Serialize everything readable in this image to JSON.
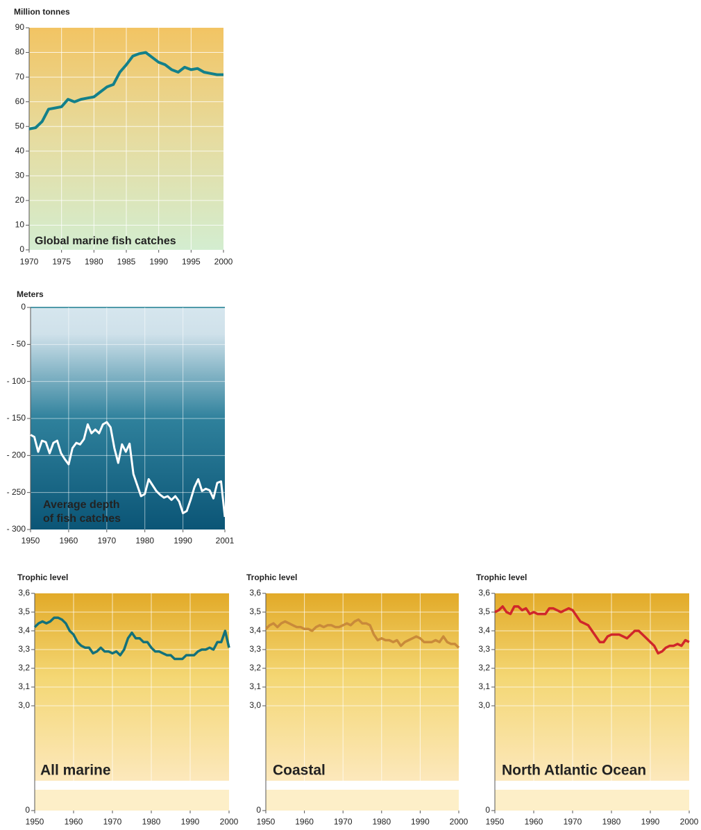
{
  "chart_data": [
    {
      "type": "line",
      "y_label": "Million tonnes",
      "title": "Global marine fish catches",
      "color": "#13808a",
      "x": [
        1970,
        1971,
        1972,
        1973,
        1974,
        1975,
        1976,
        1977,
        1978,
        1979,
        1980,
        1981,
        1982,
        1983,
        1984,
        1985,
        1986,
        1987,
        1988,
        1989,
        1990,
        1991,
        1992,
        1993,
        1994,
        1995,
        1996,
        1997,
        1998,
        1999,
        2000
      ],
      "values": [
        49,
        49.5,
        52,
        57,
        57.5,
        58,
        61,
        60,
        61,
        61.5,
        62,
        64,
        66,
        67,
        72,
        75,
        78.5,
        79.5,
        80,
        78,
        76,
        75,
        73,
        72,
        74,
        73,
        73.5,
        72,
        71.5,
        71,
        71
      ],
      "xlim": [
        1970,
        2000
      ],
      "xticks": [
        1970,
        1975,
        1980,
        1985,
        1990,
        1995,
        2000
      ],
      "ylim": [
        0,
        90
      ],
      "yticks": [
        0,
        10,
        20,
        30,
        40,
        50,
        60,
        70,
        80,
        90
      ],
      "grid": true
    },
    {
      "type": "line",
      "y_label": "Meters",
      "title": [
        "Average depth",
        "of fish catches"
      ],
      "color": "#ffffff",
      "x": [
        1950,
        1951,
        1952,
        1953,
        1954,
        1955,
        1956,
        1957,
        1958,
        1959,
        1960,
        1961,
        1962,
        1963,
        1964,
        1965,
        1966,
        1967,
        1968,
        1969,
        1970,
        1971,
        1972,
        1973,
        1974,
        1975,
        1976,
        1977,
        1978,
        1979,
        1980,
        1981,
        1982,
        1983,
        1984,
        1985,
        1986,
        1987,
        1988,
        1989,
        1990,
        1991,
        1992,
        1993,
        1994,
        1995,
        1996,
        1997,
        1998,
        1999,
        2000,
        2001
      ],
      "values": [
        -172,
        -175,
        -195,
        -180,
        -182,
        -197,
        -183,
        -180,
        -197,
        -205,
        -212,
        -190,
        -183,
        -185,
        -178,
        -158,
        -170,
        -165,
        -170,
        -158,
        -155,
        -162,
        -190,
        -210,
        -185,
        -195,
        -184,
        -225,
        -240,
        -255,
        -252,
        -232,
        -240,
        -248,
        -253,
        -257,
        -255,
        -260,
        -255,
        -262,
        -278,
        -275,
        -260,
        -243,
        -232,
        -248,
        -245,
        -247,
        -258,
        -237,
        -235,
        -283
      ],
      "xlim": [
        1950,
        2001
      ],
      "xticks": [
        1950,
        1960,
        1970,
        1980,
        1990,
        2001
      ],
      "ylim": [
        -300,
        0
      ],
      "yticks": [
        0,
        {
          "value": -50,
          "label": "- 50"
        },
        {
          "value": -100,
          "label": "- 100"
        },
        {
          "value": -150,
          "label": "- 150"
        },
        {
          "value": -200,
          "label": "- 200"
        },
        {
          "value": -250,
          "label": "- 250"
        },
        {
          "value": -300,
          "label": "- 300"
        }
      ],
      "grid": true
    },
    {
      "type": "line",
      "y_label": "Trophic level",
      "title": "All marine",
      "color": "#13717a",
      "x": [
        1950,
        1951,
        1952,
        1953,
        1954,
        1955,
        1956,
        1957,
        1958,
        1959,
        1960,
        1961,
        1962,
        1963,
        1964,
        1965,
        1966,
        1967,
        1968,
        1969,
        1970,
        1971,
        1972,
        1973,
        1974,
        1975,
        1976,
        1977,
        1978,
        1979,
        1980,
        1981,
        1982,
        1983,
        1984,
        1985,
        1986,
        1987,
        1988,
        1989,
        1990,
        1991,
        1992,
        1993,
        1994,
        1995,
        1996,
        1997,
        1998,
        1999,
        2000
      ],
      "values": [
        3.42,
        3.44,
        3.45,
        3.44,
        3.45,
        3.47,
        3.47,
        3.46,
        3.44,
        3.4,
        3.38,
        3.34,
        3.32,
        3.31,
        3.31,
        3.28,
        3.29,
        3.31,
        3.29,
        3.29,
        3.28,
        3.29,
        3.27,
        3.3,
        3.36,
        3.39,
        3.36,
        3.36,
        3.34,
        3.34,
        3.31,
        3.29,
        3.29,
        3.28,
        3.27,
        3.27,
        3.25,
        3.25,
        3.25,
        3.27,
        3.27,
        3.27,
        3.29,
        3.3,
        3.3,
        3.31,
        3.3,
        3.34,
        3.34,
        3.4,
        3.31
      ],
      "xlim": [
        1950,
        2000
      ],
      "xticks": [
        1950,
        1960,
        1970,
        1980,
        1990,
        2000
      ],
      "ylim": [
        2.6,
        3.6
      ],
      "yticks": [
        0,
        {
          "value": 3.0,
          "label": "3,0"
        },
        {
          "value": 3.1,
          "label": "3,1"
        },
        {
          "value": 3.2,
          "label": "3,2"
        },
        {
          "value": 3.3,
          "label": "3,3"
        },
        {
          "value": 3.4,
          "label": "3,4"
        },
        {
          "value": 3.5,
          "label": "3,5"
        },
        {
          "value": 3.6,
          "label": "3,6"
        }
      ],
      "grid": true
    },
    {
      "type": "line",
      "y_label": "Trophic level",
      "title": "Coastal",
      "color": "#c98a3a",
      "x": [
        1950,
        1951,
        1952,
        1953,
        1954,
        1955,
        1956,
        1957,
        1958,
        1959,
        1960,
        1961,
        1962,
        1963,
        1964,
        1965,
        1966,
        1967,
        1968,
        1969,
        1970,
        1971,
        1972,
        1973,
        1974,
        1975,
        1976,
        1977,
        1978,
        1979,
        1980,
        1981,
        1982,
        1983,
        1984,
        1985,
        1986,
        1987,
        1988,
        1989,
        1990,
        1991,
        1992,
        1993,
        1994,
        1995,
        1996,
        1997,
        1998,
        1999,
        2000
      ],
      "values": [
        3.41,
        3.43,
        3.44,
        3.42,
        3.44,
        3.45,
        3.44,
        3.43,
        3.42,
        3.42,
        3.41,
        3.41,
        3.4,
        3.42,
        3.43,
        3.42,
        3.43,
        3.43,
        3.42,
        3.42,
        3.43,
        3.44,
        3.43,
        3.45,
        3.46,
        3.44,
        3.44,
        3.43,
        3.38,
        3.35,
        3.36,
        3.35,
        3.35,
        3.34,
        3.35,
        3.32,
        3.34,
        3.35,
        3.36,
        3.37,
        3.36,
        3.34,
        3.34,
        3.34,
        3.35,
        3.34,
        3.37,
        3.34,
        3.33,
        3.33,
        3.31
      ],
      "xlim": [
        1950,
        2000
      ],
      "xticks": [
        1950,
        1960,
        1970,
        1980,
        1990,
        2000
      ],
      "ylim": [
        2.6,
        3.6
      ],
      "yticks": [
        0,
        {
          "value": 3.0,
          "label": "3,0"
        },
        {
          "value": 3.1,
          "label": "3,1"
        },
        {
          "value": 3.2,
          "label": "3,2"
        },
        {
          "value": 3.3,
          "label": "3,3"
        },
        {
          "value": 3.4,
          "label": "3,4"
        },
        {
          "value": 3.5,
          "label": "3,5"
        },
        {
          "value": 3.6,
          "label": "3,6"
        }
      ],
      "grid": true
    },
    {
      "type": "line",
      "y_label": "Trophic level",
      "title": "North Atlantic Ocean",
      "color": "#d0262a",
      "x": [
        1950,
        1951,
        1952,
        1953,
        1954,
        1955,
        1956,
        1957,
        1958,
        1959,
        1960,
        1961,
        1962,
        1963,
        1964,
        1965,
        1966,
        1967,
        1968,
        1969,
        1970,
        1971,
        1972,
        1973,
        1974,
        1975,
        1976,
        1977,
        1978,
        1979,
        1980,
        1981,
        1982,
        1983,
        1984,
        1985,
        1986,
        1987,
        1988,
        1989,
        1990,
        1991,
        1992,
        1993,
        1994,
        1995,
        1996,
        1997,
        1998,
        1999,
        2000
      ],
      "values": [
        3.5,
        3.51,
        3.53,
        3.5,
        3.49,
        3.53,
        3.53,
        3.51,
        3.52,
        3.49,
        3.5,
        3.49,
        3.49,
        3.49,
        3.52,
        3.52,
        3.51,
        3.5,
        3.51,
        3.52,
        3.51,
        3.48,
        3.45,
        3.44,
        3.43,
        3.4,
        3.37,
        3.34,
        3.34,
        3.37,
        3.38,
        3.38,
        3.38,
        3.37,
        3.36,
        3.38,
        3.4,
        3.4,
        3.38,
        3.36,
        3.34,
        3.32,
        3.28,
        3.29,
        3.31,
        3.32,
        3.32,
        3.33,
        3.32,
        3.35,
        3.34
      ],
      "xlim": [
        1950,
        2000
      ],
      "xticks": [
        1950,
        1960,
        1970,
        1980,
        1990,
        2000
      ],
      "ylim": [
        2.6,
        3.6
      ],
      "yticks": [
        0,
        {
          "value": 3.0,
          "label": "3,0"
        },
        {
          "value": 3.1,
          "label": "3,1"
        },
        {
          "value": 3.2,
          "label": "3,2"
        },
        {
          "value": 3.3,
          "label": "3,3"
        },
        {
          "value": 3.4,
          "label": "3,4"
        },
        {
          "value": 3.5,
          "label": "3,5"
        },
        {
          "value": 3.6,
          "label": "3,6"
        }
      ],
      "grid": true
    }
  ]
}
